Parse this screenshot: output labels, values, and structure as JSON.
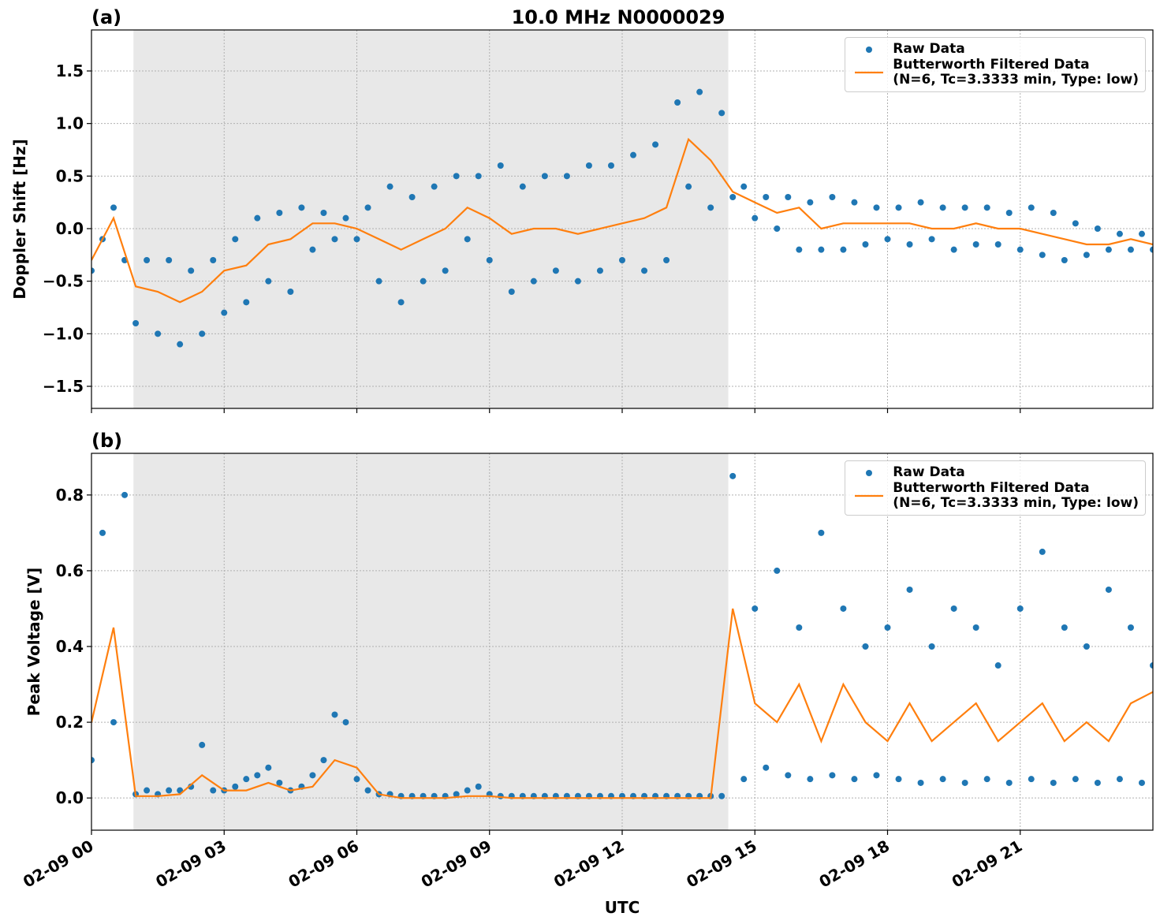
{
  "title": "10.0 MHz N0000029",
  "chart_data": [
    {
      "type": "scatter-line",
      "panel_label": "(a)",
      "ylabel": "Doppler Shift [Hz]",
      "xlim": [
        0,
        24
      ],
      "ylim": [
        -1.71,
        1.89
      ],
      "xticks": [
        0,
        3,
        6,
        9,
        12,
        15,
        18,
        21
      ],
      "yticks": [
        {
          "value": -1.5,
          "label": "−1.5"
        },
        {
          "value": -1.0,
          "label": "−1.0"
        },
        {
          "value": -0.5,
          "label": "−0.5"
        },
        {
          "value": 0,
          "label": "0.0"
        },
        0.5,
        {
          "value": 1.0,
          "label": "1.0"
        },
        1.5
      ],
      "grid": true,
      "legend": "upper right",
      "shade": [
        0.95,
        14.4
      ],
      "shade_color": "#e8e8e8",
      "series": [
        {
          "name": "Raw Data",
          "color": "#1f77b4",
          "style": "markers",
          "x": [
            0,
            0.25,
            0.5,
            0.75,
            1,
            1.25,
            1.5,
            1.75,
            2,
            2.25,
            2.5,
            2.75,
            3,
            3.25,
            3.5,
            3.75,
            4,
            4.25,
            4.5,
            4.75,
            5,
            5.25,
            5.5,
            5.75,
            6,
            6.25,
            6.5,
            6.75,
            7,
            7.25,
            7.5,
            7.75,
            8,
            8.25,
            8.5,
            8.75,
            9,
            9.25,
            9.5,
            9.75,
            10,
            10.25,
            10.5,
            10.75,
            11,
            11.25,
            11.5,
            11.75,
            12,
            12.25,
            12.5,
            12.75,
            13,
            13.25,
            13.5,
            13.75,
            14,
            14.25,
            14.5,
            14.75,
            15,
            15.25,
            15.5,
            15.75,
            16,
            16.25,
            16.5,
            16.75,
            17,
            17.25,
            17.5,
            17.75,
            18,
            18.25,
            18.5,
            18.75,
            19,
            19.25,
            19.5,
            19.75,
            20,
            20.25,
            20.5,
            20.75,
            21,
            21.25,
            21.5,
            21.75,
            22,
            22.25,
            22.5,
            22.75,
            23,
            23.25,
            23.5,
            23.75,
            24
          ],
          "values": [
            -0.4,
            -0.1,
            0.2,
            -0.3,
            -0.9,
            -0.3,
            -1.0,
            -0.3,
            -1.1,
            -0.4,
            -1.0,
            -0.3,
            -0.8,
            -0.1,
            -0.7,
            0.1,
            -0.5,
            0.15,
            -0.6,
            0.2,
            -0.2,
            0.15,
            -0.1,
            0.1,
            -0.1,
            0.2,
            -0.5,
            0.4,
            -0.7,
            0.3,
            -0.5,
            0.4,
            -0.4,
            0.5,
            -0.1,
            0.5,
            -0.3,
            0.6,
            -0.6,
            0.4,
            -0.5,
            0.5,
            -0.4,
            0.5,
            -0.5,
            0.6,
            -0.4,
            0.6,
            -0.3,
            0.7,
            -0.4,
            0.8,
            -0.3,
            1.2,
            0.4,
            1.3,
            0.2,
            1.1,
            0.3,
            0.4,
            0.1,
            0.3,
            0.0,
            0.3,
            -0.2,
            0.25,
            -0.2,
            0.3,
            -0.2,
            0.25,
            -0.15,
            0.2,
            -0.1,
            0.2,
            -0.15,
            0.25,
            -0.1,
            0.2,
            -0.2,
            0.2,
            -0.15,
            0.2,
            -0.15,
            0.15,
            -0.2,
            0.2,
            -0.25,
            0.15,
            -0.3,
            0.05,
            -0.25,
            0.0,
            -0.2,
            -0.05,
            -0.2,
            -0.05,
            -0.2
          ]
        },
        {
          "name": "Butterworth Filtered Data\n(N=6, Tc=3.3333 min, Type: low)",
          "color": "#ff7f0e",
          "style": "line",
          "x": [
            0,
            0.5,
            1,
            1.5,
            2,
            2.5,
            3,
            3.5,
            4,
            4.5,
            5,
            5.5,
            6,
            6.5,
            7,
            7.5,
            8,
            8.5,
            9,
            9.5,
            10,
            10.5,
            11,
            11.5,
            12,
            12.5,
            13,
            13.5,
            14,
            14.5,
            15,
            15.5,
            16,
            16.5,
            17,
            17.5,
            18,
            18.5,
            19,
            19.5,
            20,
            20.5,
            21,
            21.5,
            22,
            22.5,
            23,
            23.5,
            24
          ],
          "values": [
            -0.3,
            0.1,
            -0.55,
            -0.6,
            -0.7,
            -0.6,
            -0.4,
            -0.35,
            -0.15,
            -0.1,
            0.05,
            0.05,
            0.0,
            -0.1,
            -0.2,
            -0.1,
            0.0,
            0.2,
            0.1,
            -0.05,
            0.0,
            0.0,
            -0.05,
            0.0,
            0.05,
            0.1,
            0.2,
            0.85,
            0.65,
            0.35,
            0.25,
            0.15,
            0.2,
            0.0,
            0.05,
            0.05,
            0.05,
            0.05,
            0.0,
            0.0,
            0.05,
            0.0,
            0.0,
            -0.05,
            -0.1,
            -0.15,
            -0.15,
            -0.1,
            -0.15
          ]
        }
      ]
    },
    {
      "type": "scatter-line",
      "panel_label": "(b)",
      "ylabel": "Peak Voltage [V]",
      "xlabel": "UTC",
      "xlim": [
        0,
        24
      ],
      "ylim": [
        -0.085,
        0.91
      ],
      "xticks": [
        {
          "value": 0,
          "label": "02-09 00"
        },
        {
          "value": 3,
          "label": "02-09 03"
        },
        {
          "value": 6,
          "label": "02-09 06"
        },
        {
          "value": 9,
          "label": "02-09 09"
        },
        {
          "value": 12,
          "label": "02-09 12"
        },
        {
          "value": 15,
          "label": "02-09 15"
        },
        {
          "value": 18,
          "label": "02-09 18"
        },
        {
          "value": 21,
          "label": "02-09 21"
        }
      ],
      "yticks": [
        {
          "value": 0,
          "label": "0.0"
        },
        0.2,
        0.4,
        0.6,
        0.8
      ],
      "grid": true,
      "legend": "upper right",
      "shade": [
        0.95,
        14.4
      ],
      "shade_color": "#e8e8e8",
      "series": [
        {
          "name": "Raw Data",
          "color": "#1f77b4",
          "style": "markers",
          "x": [
            0,
            0.25,
            0.5,
            0.75,
            1,
            1.25,
            1.5,
            1.75,
            2,
            2.25,
            2.5,
            2.75,
            3,
            3.25,
            3.5,
            3.75,
            4,
            4.25,
            4.5,
            4.75,
            5,
            5.25,
            5.5,
            5.75,
            6,
            6.25,
            6.5,
            6.75,
            7,
            7.25,
            7.5,
            7.75,
            8,
            8.25,
            8.5,
            8.75,
            9,
            9.25,
            9.5,
            9.75,
            10,
            10.25,
            10.5,
            10.75,
            11,
            11.25,
            11.5,
            11.75,
            12,
            12.25,
            12.5,
            12.75,
            13,
            13.25,
            13.5,
            13.75,
            14,
            14.25,
            14.5,
            14.75,
            15,
            15.25,
            15.5,
            15.75,
            16,
            16.25,
            16.5,
            16.75,
            17,
            17.25,
            17.5,
            17.75,
            18,
            18.25,
            18.5,
            18.75,
            19,
            19.25,
            19.5,
            19.75,
            20,
            20.25,
            20.5,
            20.75,
            21,
            21.25,
            21.5,
            21.75,
            22,
            22.25,
            22.5,
            22.75,
            23,
            23.25,
            23.5,
            23.75,
            24
          ],
          "values": [
            0.1,
            0.7,
            0.2,
            0.8,
            0.01,
            0.02,
            0.01,
            0.02,
            0.02,
            0.03,
            0.14,
            0.02,
            0.02,
            0.03,
            0.05,
            0.06,
            0.08,
            0.04,
            0.02,
            0.03,
            0.06,
            0.1,
            0.22,
            0.2,
            0.05,
            0.02,
            0.01,
            0.01,
            0.005,
            0.005,
            0.005,
            0.005,
            0.005,
            0.01,
            0.02,
            0.03,
            0.01,
            0.005,
            0.005,
            0.005,
            0.005,
            0.005,
            0.005,
            0.005,
            0.005,
            0.005,
            0.005,
            0.005,
            0.005,
            0.005,
            0.005,
            0.005,
            0.005,
            0.005,
            0.005,
            0.005,
            0.005,
            0.005,
            0.85,
            0.05,
            0.5,
            0.08,
            0.6,
            0.06,
            0.45,
            0.05,
            0.7,
            0.06,
            0.5,
            0.05,
            0.4,
            0.06,
            0.45,
            0.05,
            0.55,
            0.04,
            0.4,
            0.05,
            0.5,
            0.04,
            0.45,
            0.05,
            0.35,
            0.04,
            0.5,
            0.05,
            0.65,
            0.04,
            0.45,
            0.05,
            0.4,
            0.04,
            0.55,
            0.05,
            0.45,
            0.04,
            0.35
          ]
        },
        {
          "name": "Butterworth Filtered Data\n(N=6, Tc=3.3333 min, Type: low)",
          "color": "#ff7f0e",
          "style": "line",
          "x": [
            0,
            0.5,
            1,
            1.5,
            2,
            2.5,
            3,
            3.5,
            4,
            4.5,
            5,
            5.5,
            6,
            6.5,
            7,
            7.5,
            8,
            8.5,
            9,
            9.5,
            10,
            10.5,
            11,
            11.5,
            12,
            12.5,
            13,
            13.5,
            14,
            14.5,
            15,
            15.5,
            16,
            16.5,
            17,
            17.5,
            18,
            18.5,
            19,
            19.5,
            20,
            20.5,
            21,
            21.5,
            22,
            22.5,
            23,
            23.5,
            24
          ],
          "values": [
            0.2,
            0.45,
            0.005,
            0.005,
            0.01,
            0.06,
            0.02,
            0.02,
            0.04,
            0.02,
            0.03,
            0.1,
            0.08,
            0.01,
            0,
            0,
            0,
            0.005,
            0.005,
            0,
            0,
            0,
            0,
            0,
            0,
            0,
            0,
            0,
            0,
            0.5,
            0.25,
            0.2,
            0.3,
            0.15,
            0.3,
            0.2,
            0.15,
            0.25,
            0.15,
            0.2,
            0.25,
            0.15,
            0.2,
            0.25,
            0.15,
            0.2,
            0.15,
            0.25,
            0.28
          ]
        }
      ]
    }
  ]
}
